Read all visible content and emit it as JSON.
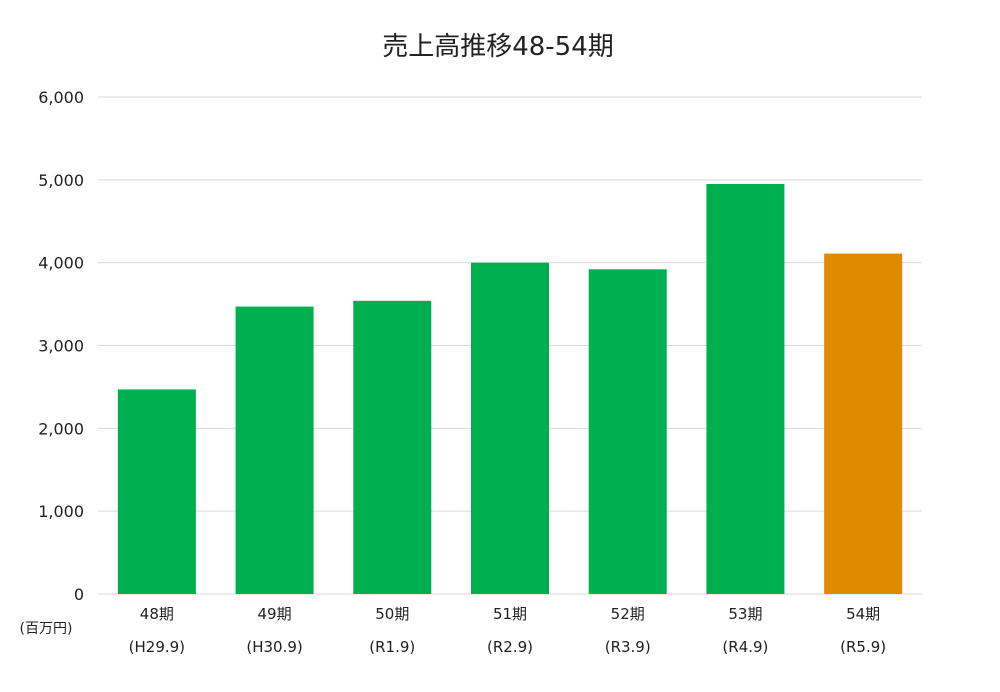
{
  "chart_data": {
    "type": "bar",
    "title": "売上高推移48-54期",
    "unit_label": "(百万円)",
    "categories": [
      "48期",
      "49期",
      "50期",
      "51期",
      "52期",
      "53期",
      "54期"
    ],
    "subcategories": [
      "(H29.9)",
      "(H30.9)",
      "(R1.9)",
      "(R2.9)",
      "(R3.9)",
      "(R4.9)",
      "(R5.9)"
    ],
    "values": [
      2470,
      3470,
      3540,
      4000,
      3920,
      4950,
      4110
    ],
    "ylim": [
      0,
      6000
    ],
    "yticks": [
      0,
      1000,
      2000,
      3000,
      4000,
      5000,
      6000
    ],
    "ytick_labels": [
      "0",
      "1,000",
      "2,000",
      "3,000",
      "4,000",
      "5,000",
      "6,000"
    ],
    "bar_colors": [
      "#00b050",
      "#00b050",
      "#00b050",
      "#00b050",
      "#00b050",
      "#00b050",
      "#e08a00"
    ],
    "grid": true,
    "gridline_color": "#d9d9d9"
  }
}
